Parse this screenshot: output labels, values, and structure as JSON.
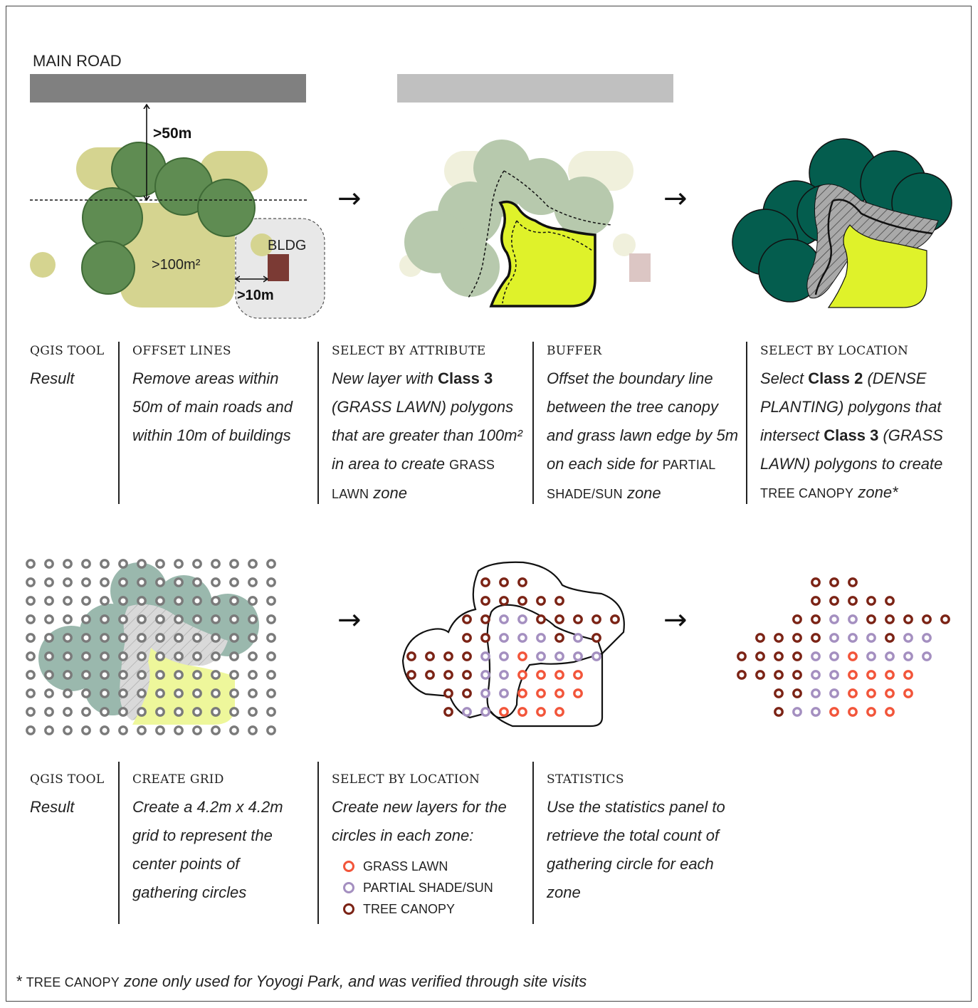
{
  "colors": {
    "road_dark": "#808080",
    "road_light": "#c0c0c0",
    "grass": "#d5d490",
    "tree": "#5f8c52",
    "tree_dark": "#3f6a36",
    "building": "#7b3a34",
    "lime": "#dff22a",
    "canopy_dark": "#045d4e",
    "grid_gray": "#7a7a7a",
    "grass_lawn_dot": "#f2553a",
    "partial_dot": "#a48fc0",
    "tree_canopy_dot": "#7b2315"
  },
  "row1": {
    "road_label": "MAIN ROAD",
    "dim_50m": ">50m",
    "area_label": ">100m²",
    "bldg_label": "BLDG",
    "dim_10m": ">10m",
    "arrow": "→",
    "labels": {
      "tool_header": "QGIS TOOL",
      "tool_result": "Result"
    },
    "steps": [
      {
        "tool": "OFFSET LINES",
        "desc": "Remove areas within 50m of main roads and within 10m of buildings"
      },
      {
        "tool": "SELECT BY ATTRIBUTE",
        "desc_pre": "New layer with ",
        "desc_bold": "Class 3",
        "desc_post": " (GRASS LAWN) polygons that are greater than 100m² in area to create ",
        "desc_sc": "GRASS LAWN",
        "desc_end": " zone"
      },
      {
        "tool": "BUFFER",
        "desc_pre": "Offset the boundary line between the tree canopy and grass lawn edge by 5m on each side for ",
        "desc_sc": "PARTIAL SHADE/SUN",
        "desc_end": " zone"
      },
      {
        "tool": "SELECT BY LOCATION",
        "desc_pre": "Select ",
        "desc_bold1": "Class 2",
        "desc_mid": " (DENSE PLANTING) polygons that intersect ",
        "desc_bold2": "Class 3",
        "desc_post": " (GRASS LAWN) polygons to create ",
        "desc_sc": "TREE CANOPY",
        "desc_end": " zone*"
      }
    ]
  },
  "row2": {
    "arrow": "→",
    "labels": {
      "tool_header": "QGIS TOOL",
      "tool_result": "Result"
    },
    "steps": [
      {
        "tool": "CREATE GRID",
        "desc": "Create a 4.2m x 4.2m grid to represent the center points of gathering circles"
      },
      {
        "tool": "SELECT BY LOCATION",
        "desc": "Create new layers for the circles in each zone:",
        "legend": [
          {
            "name": "GRASS LAWN",
            "color": "#f2553a"
          },
          {
            "name": "PARTIAL SHADE/SUN",
            "color": "#a48fc0"
          },
          {
            "name": "TREE CANOPY",
            "color": "#7b2315"
          }
        ]
      },
      {
        "tool": "STATISTICS",
        "desc": "Use the statistics panel to retrieve the total count of gathering circle for each zone"
      }
    ]
  },
  "footnote": {
    "star": "* ",
    "sc": "TREE CANOPY",
    "rest": " zone only used for Yoyogi Park, and was verified through site visits"
  }
}
